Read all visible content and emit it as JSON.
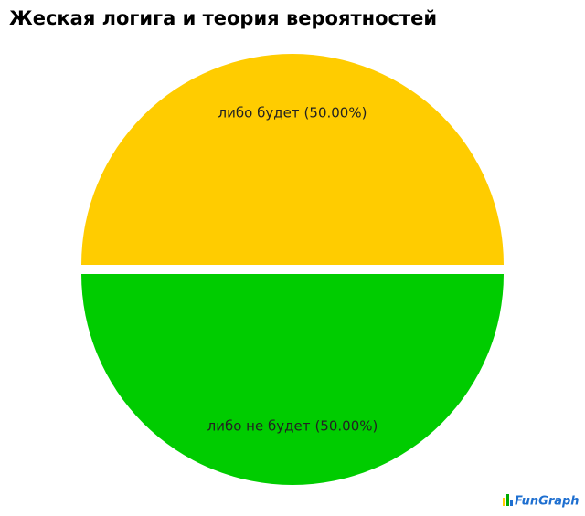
{
  "chart_data": {
    "type": "pie",
    "title": "Жеская логига и теория вероятностей",
    "categories": [
      "либо будет",
      "либо не будет"
    ],
    "values": [
      50,
      50
    ],
    "value_labels": [
      "(50.00%)",
      "(50.00%)"
    ],
    "colors": [
      "#ffcc00",
      "#00cc00"
    ],
    "watermark": "FunGraph"
  }
}
